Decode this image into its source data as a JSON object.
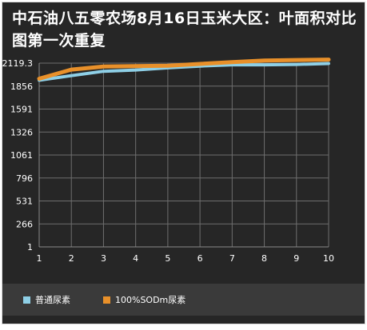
{
  "chart_data": {
    "type": "line",
    "title": "中石油八五零农场8月16日玉米大区：叶面积对比图第一次重复",
    "categories": [
      "1",
      "2",
      "3",
      "4",
      "5",
      "6",
      "7",
      "8",
      "9",
      "10"
    ],
    "y_ticks": [
      "2119.3",
      "1856",
      "1591",
      "1326",
      "1061",
      "796",
      "531",
      "266",
      "1"
    ],
    "ylim": [
      1,
      2119.3
    ],
    "grid": true,
    "legend_position": "bottom",
    "series": [
      {
        "name": "普通尿素",
        "color": "#8ecfe6",
        "values": [
          1922,
          1975,
          2025,
          2040,
          2065,
          2085,
          2100,
          2100,
          2105,
          2115
        ]
      },
      {
        "name": "100%SODm尿素",
        "color": "#e8902a",
        "values": [
          1940,
          2045,
          2080,
          2085,
          2090,
          2110,
          2130,
          2150,
          2155,
          2160
        ]
      }
    ]
  },
  "colors": {
    "background": "#262626",
    "legend_band": "#3a3a3a",
    "grid": "#6e6e6e",
    "text": "#ffffff"
  }
}
